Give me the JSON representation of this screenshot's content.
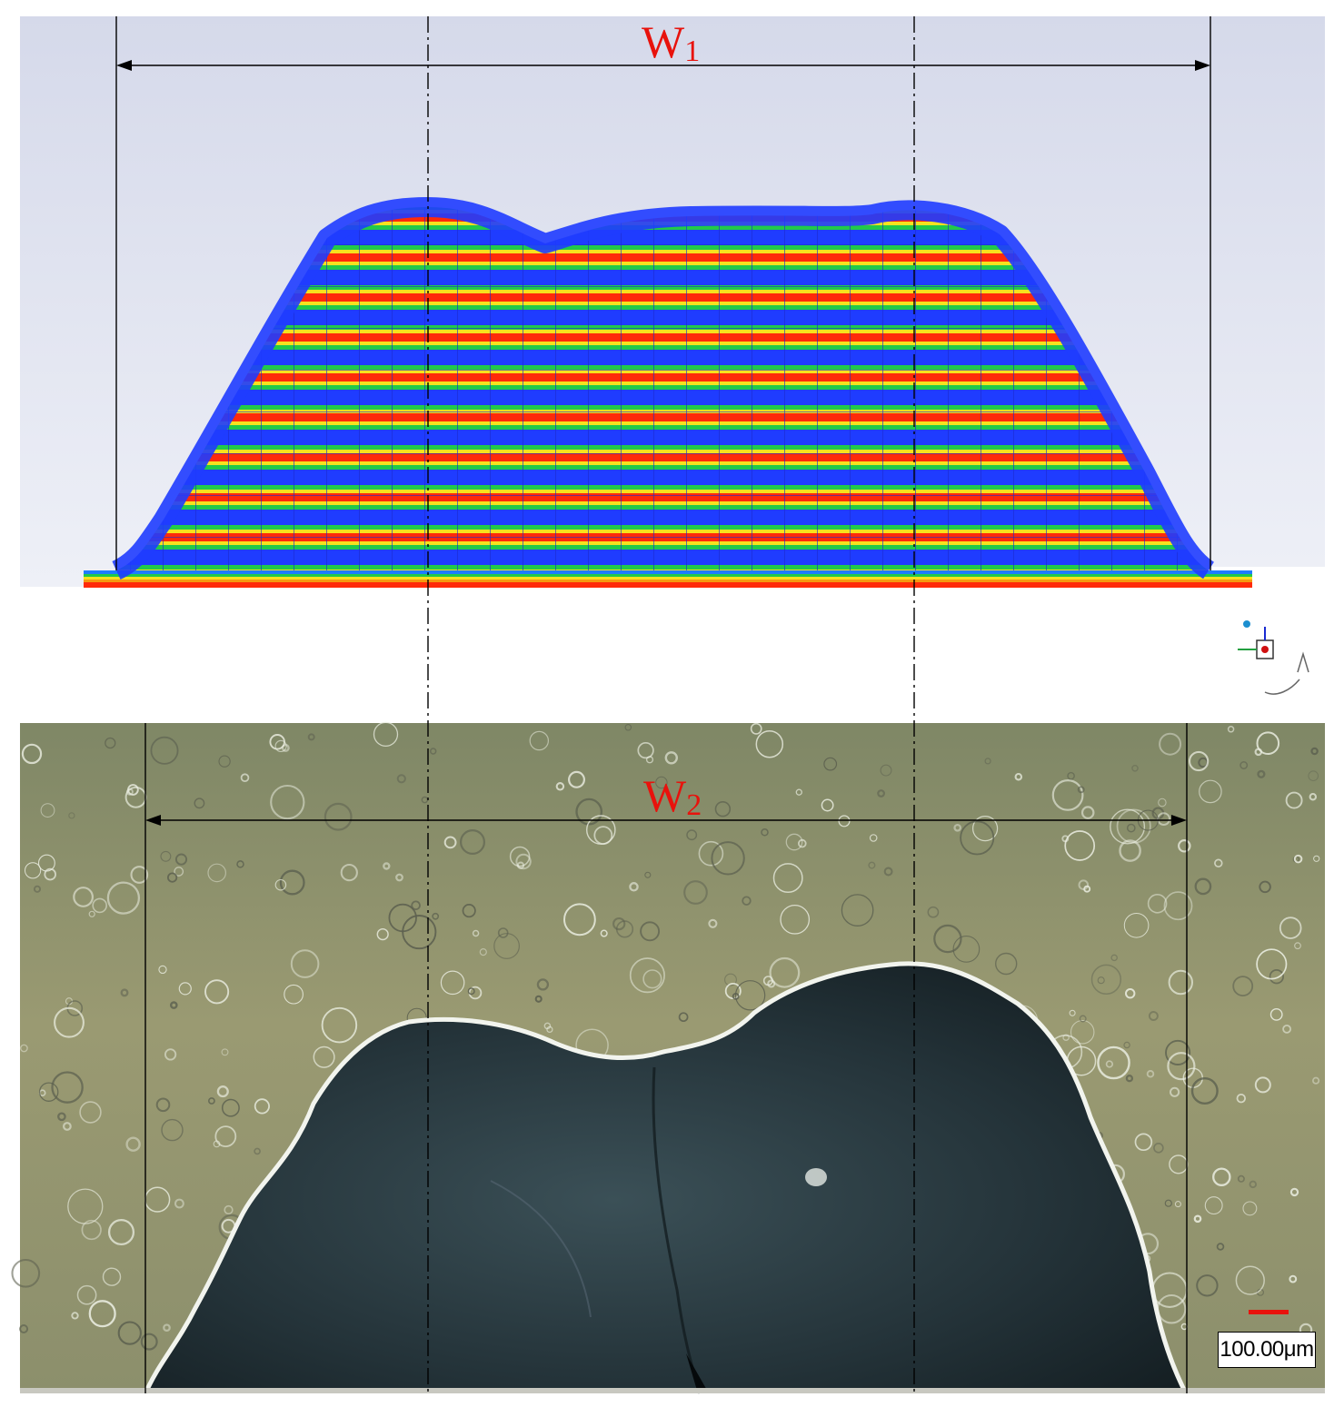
{
  "labels": {
    "w1_main": "W",
    "w1_sub": "1",
    "w2_main": "W",
    "w2_sub": "2",
    "scale_bar": "100.00μm"
  },
  "colors": {
    "label_red": "#e8120c",
    "sim_blue": "#1f3cff",
    "contour_green": "#22c94a",
    "contour_yellow": "#f6e21e",
    "contour_red": "#ff2a0a",
    "micro_background": "#8f9270",
    "micro_bead": "#22323a",
    "scale_bar_red": "#e8120c"
  }
}
